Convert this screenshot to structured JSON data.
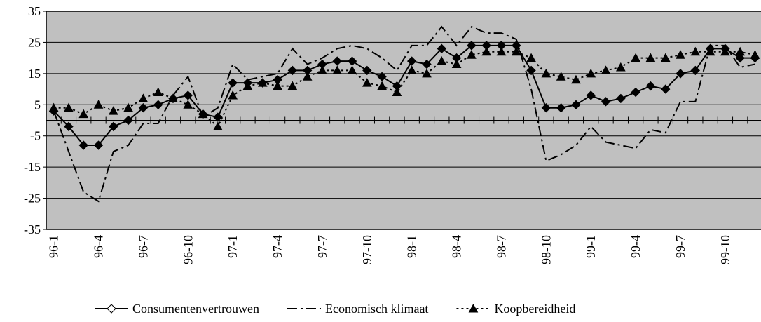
{
  "chart_data": {
    "type": "line",
    "categories": [
      "96-1",
      null,
      null,
      "96-4",
      null,
      null,
      "96-7",
      null,
      null,
      "96-10",
      null,
      null,
      "97-1",
      null,
      null,
      "97-4",
      null,
      null,
      "97-7",
      null,
      null,
      "97-10",
      null,
      null,
      "98-1",
      null,
      null,
      "98-4",
      null,
      null,
      "98-7",
      null,
      null,
      "98-10",
      null,
      null,
      "99-1",
      null,
      null,
      "99-4",
      null,
      null,
      "99-7",
      null,
      null,
      "99-10",
      null,
      null
    ],
    "series": [
      {
        "name": "Consumentenvertrouwen",
        "color": "#000000",
        "line_style": "solid",
        "marker": "diamond",
        "values": [
          3,
          -2,
          -8,
          -8,
          -2,
          0,
          4,
          5,
          7,
          8,
          2,
          1,
          12,
          12,
          12,
          13,
          16,
          16,
          18,
          19,
          19,
          16,
          14,
          11,
          19,
          18,
          23,
          20,
          24,
          24,
          24,
          24,
          16,
          4,
          4,
          5,
          8,
          6,
          7,
          9,
          11,
          10,
          15,
          16,
          23,
          23,
          20,
          20
        ]
      },
      {
        "name": "Economisch klimaat",
        "color": "#000000",
        "line_style": "dashdot",
        "marker": "none",
        "values": [
          3,
          -10,
          -23,
          -26,
          -10,
          -8,
          -1,
          -1,
          8,
          14,
          1,
          4,
          18,
          13,
          14,
          15,
          23,
          18,
          20,
          23,
          24,
          23,
          20,
          16,
          24,
          24,
          30,
          24,
          30,
          28,
          28,
          26,
          10,
          -13,
          -11,
          -8,
          -2,
          -7,
          -8,
          -9,
          -3,
          -4,
          6,
          6,
          24,
          24,
          17,
          18
        ]
      },
      {
        "name": "Koopbereidheid",
        "color": "#000000",
        "line_style": "dotted",
        "marker": "triangle",
        "values": [
          4,
          4,
          2,
          5,
          3,
          4,
          7,
          9,
          7,
          5,
          2,
          -2,
          8,
          11,
          12,
          11,
          11,
          14,
          16,
          16,
          16,
          12,
          11,
          9,
          16,
          15,
          19,
          18,
          21,
          22,
          22,
          22,
          20,
          15,
          14,
          13,
          15,
          16,
          17,
          20,
          20,
          20,
          21,
          22,
          22,
          22,
          22,
          21
        ]
      }
    ],
    "ylim": [
      -35,
      35
    ],
    "yticks": [
      -35,
      -25,
      -15,
      -5,
      5,
      15,
      25,
      35
    ],
    "grid": true,
    "plot_background": "#c0c0c0",
    "legend": "bottom"
  }
}
